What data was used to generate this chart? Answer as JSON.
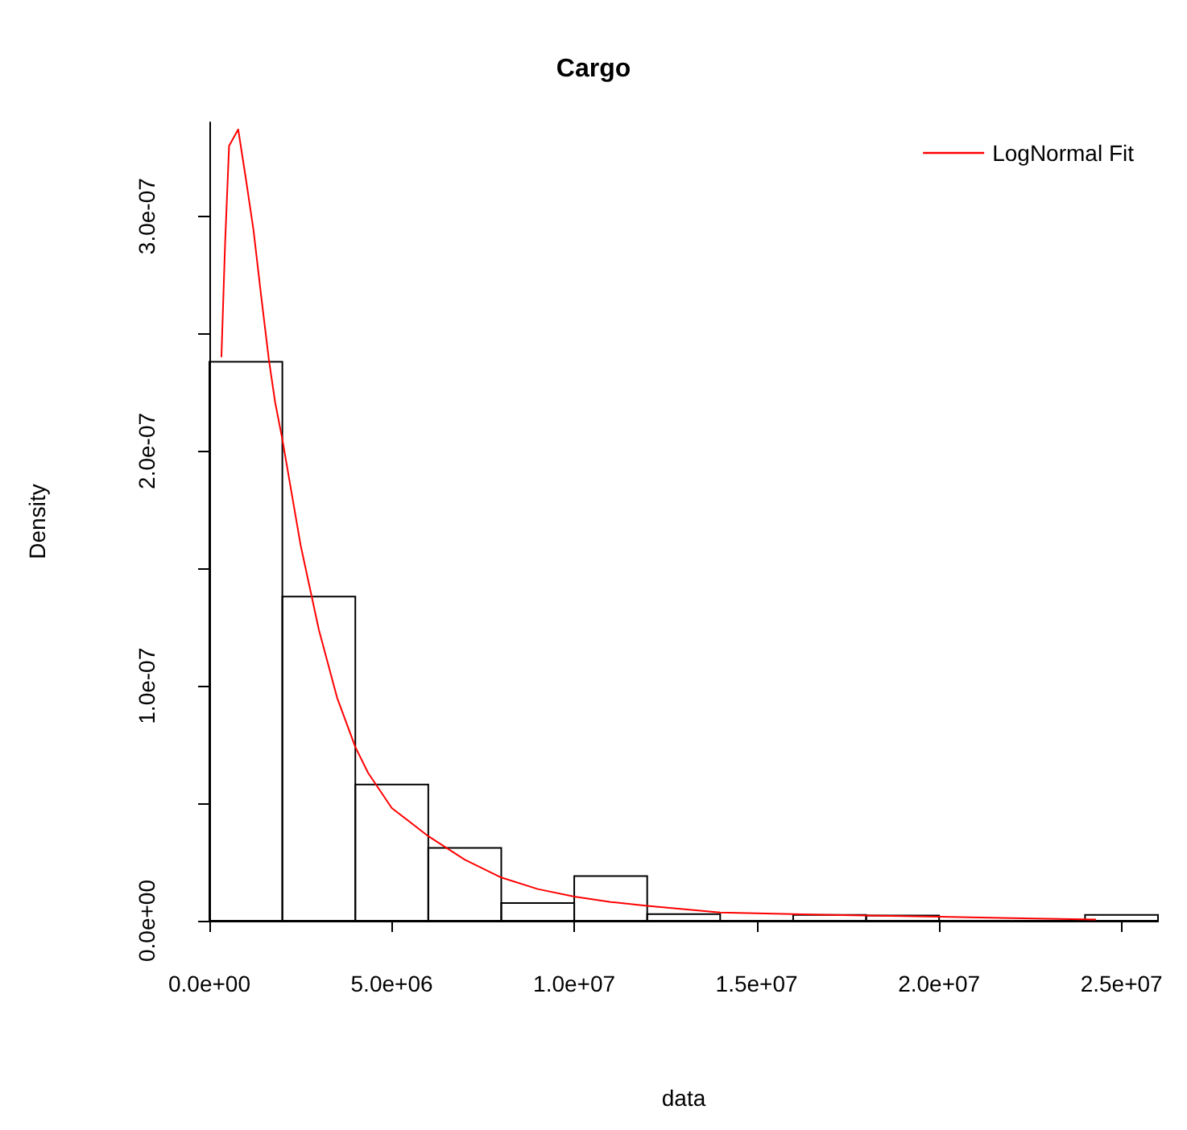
{
  "chart_data": {
    "type": "histogram",
    "title": "Cargo",
    "xlabel": "data",
    "ylabel": "Density",
    "bins": [
      0,
      2000000,
      4000000,
      6000000,
      8000000,
      10000000,
      12000000,
      14000000,
      16000000,
      18000000,
      20000000,
      22000000,
      24000000,
      26000000
    ],
    "values": [
      2.38e-07,
      1.38e-07,
      5.8e-08,
      3.1e-08,
      7.5e-09,
      1.9e-08,
      2.8e-09,
      0,
      2.5e-09,
      2.2e-09,
      0,
      0,
      2.5e-09
    ],
    "color": "#000000",
    "series": [
      {
        "type": "line",
        "name": "LogNormal Fit",
        "color": "#ff0000",
        "x": [
          330000,
          430000,
          540000,
          790000,
          1000000,
          1210000,
          1420000,
          1630000,
          1800000,
          2000000,
          2500000,
          3000000,
          3500000,
          4000000,
          4350000,
          5000000,
          6000000,
          7000000,
          8000000,
          9000000,
          10000000,
          11000000,
          12000000,
          14000000,
          16000000,
          18000000,
          20000000,
          22000000,
          24300000
        ],
        "values": [
          2.4e-07,
          2.88e-07,
          3.3e-07,
          3.37e-07,
          3.16e-07,
          2.94e-07,
          2.66e-07,
          2.39e-07,
          2.21e-07,
          2.05e-07,
          1.6e-07,
          1.24e-07,
          9.5e-08,
          7.4e-08,
          6.3e-08,
          4.8e-08,
          3.6e-08,
          2.6e-08,
          1.84e-08,
          1.35e-08,
          1.03e-08,
          8e-09,
          6.3e-09,
          3.5e-09,
          2.8e-09,
          2.2e-09,
          1.7e-09,
          1.1e-09,
          5e-10
        ]
      }
    ],
    "xlim": [
      0,
      26000000
    ],
    "xticks": [
      {
        "value": 0,
        "label": "0.0e+00"
      },
      {
        "value": 5000000,
        "label": "5.0e+06"
      },
      {
        "value": 10000000,
        "label": "1.0e+07"
      },
      {
        "value": 15000000,
        "label": "1.5e+07"
      },
      {
        "value": 20000000,
        "label": "2.0e+07"
      },
      {
        "value": 25000000,
        "label": "2.5e+07"
      }
    ],
    "ylim": [
      0,
      3.4e-07
    ],
    "yticks": [
      {
        "value": 0,
        "label": "0.0e+00"
      },
      {
        "value": 5e-08,
        "label": null
      },
      {
        "value": 1e-07,
        "label": "1.0e-07"
      },
      {
        "value": 1.5e-07,
        "label": null
      },
      {
        "value": 2e-07,
        "label": "2.0e-07"
      },
      {
        "value": 2.5e-07,
        "label": null
      },
      {
        "value": 3e-07,
        "label": "3.0e-07"
      }
    ],
    "grid": false,
    "legend": "top right",
    "marker": "none",
    "line_style": "solid"
  }
}
